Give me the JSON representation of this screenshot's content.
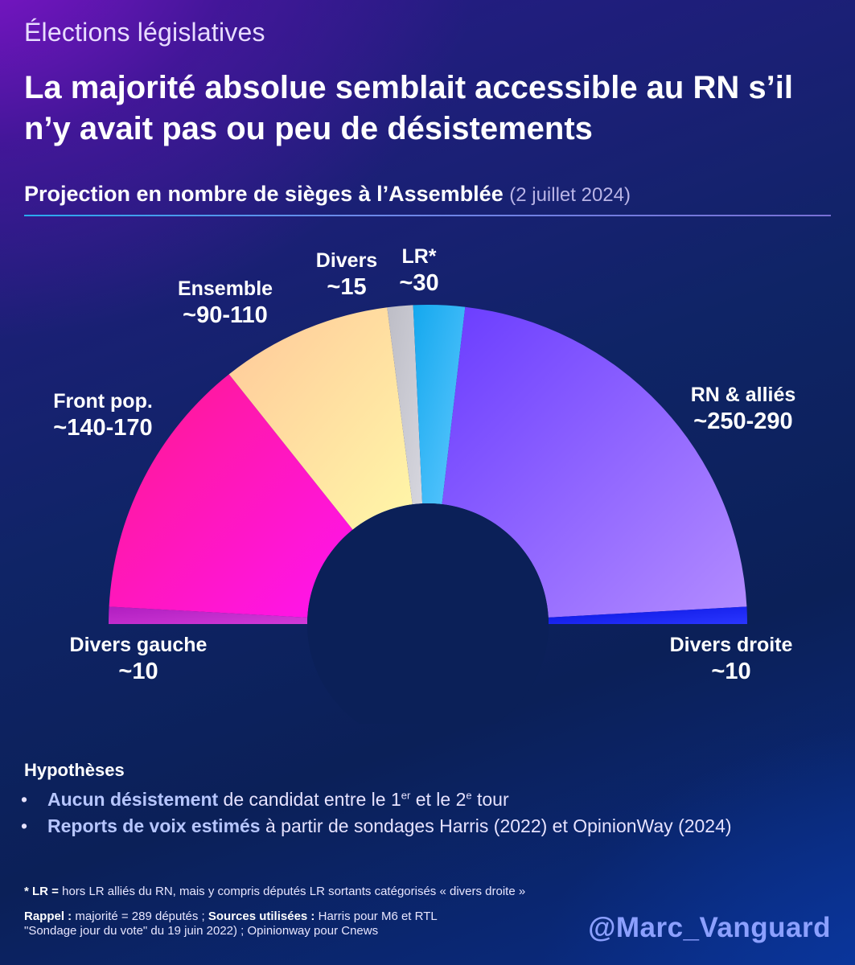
{
  "header": {
    "kicker": "Élections législatives",
    "headline": "La majorité absolue semblait accessible au RN s’il n’y avait pas ou peu de désistements",
    "subtitle": "Projection en nombre de sièges à l’Assemblée",
    "subtitle_date": "(2 juillet 2024)"
  },
  "chart_data": {
    "type": "pie",
    "shape": "hemicycle",
    "title": "Projection en nombre de sièges à l’Assemblée",
    "subtitle": "(2 juillet 2024)",
    "total_seats": 577,
    "unit": "sièges",
    "segments": [
      {
        "key": "divers_gauche",
        "name": "Divers gauche",
        "label": "~10",
        "seats": 10,
        "color": "#c026c8"
      },
      {
        "key": "front_pop",
        "name": "Front pop.",
        "label": "~140-170",
        "seats": 155,
        "color": "#ff0fa8"
      },
      {
        "key": "ensemble",
        "name": "Ensemble",
        "label": "~90-110",
        "seats": 100,
        "color": "#ffe5a0"
      },
      {
        "key": "divers",
        "name": "Divers",
        "label": "~15",
        "seats": 15,
        "color": "#c8c8d0"
      },
      {
        "key": "lr",
        "name": "LR*",
        "label": "~30",
        "seats": 30,
        "color": "#1fb6f0"
      },
      {
        "key": "rn",
        "name": "RN & alliés",
        "label": "~250-290",
        "seats": 257,
        "color": "#8a5cff"
      },
      {
        "key": "divers_droite",
        "name": "Divers droite",
        "label": "~10",
        "seats": 10,
        "color": "#1a22e8"
      }
    ]
  },
  "hypotheses": {
    "title": "Hypothèses",
    "items": [
      {
        "bullet": "•",
        "bold": "Aucun désistement",
        "text_a": " de candidat entre le 1",
        "sup_a": "er",
        "text_b": " et le 2",
        "sup_b": "e",
        "text_c": " tour"
      },
      {
        "bullet": "•",
        "bold": "Reports de voix estimés",
        "text_a": " à partir de sondages Harris (2022) et OpinionWay (2024)"
      }
    ]
  },
  "footnote": {
    "bold": "* LR =",
    "text": " hors LR alliés du RN, mais y compris députés LR sortants catégorisés « divers droite »"
  },
  "sources": {
    "bold_a": "Rappel :",
    "text_a": " majorité = 289 députés ; ",
    "bold_b": "Sources utilisées :",
    "text_b": " Harris pour M6 et RTL",
    "line2": "\"Sondage jour du vote\" du 19 juin 2022) ; Opinionway pour Cnews"
  },
  "branding": {
    "handle": "@Marc_Vanguard"
  }
}
